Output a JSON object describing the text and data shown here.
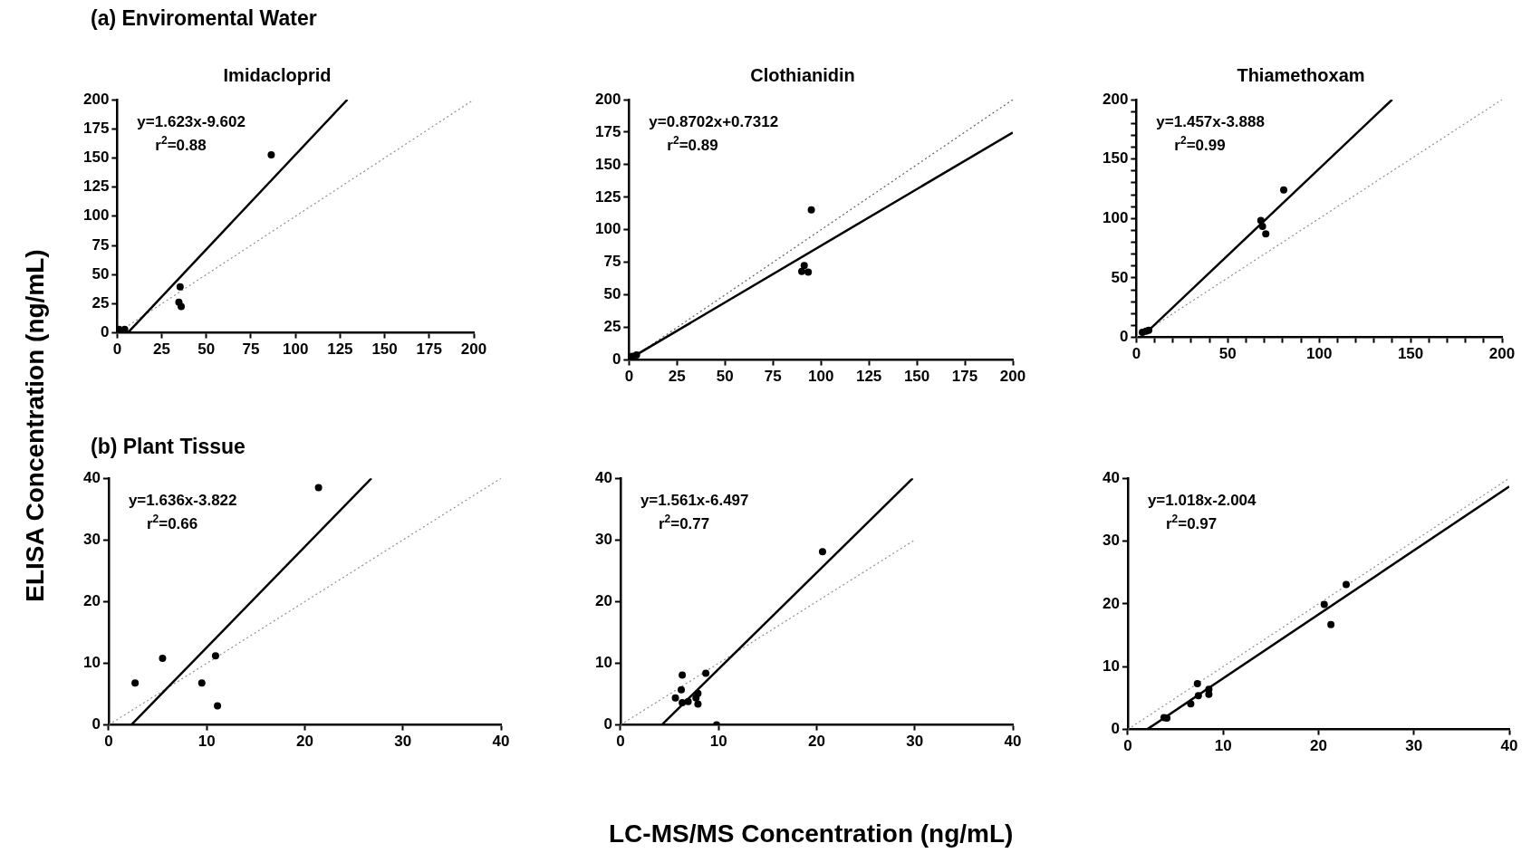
{
  "chart_data": [
    {
      "type": "scatter",
      "subtitle": "(a) Enviromental Water",
      "title": "Imidacloprid",
      "ylabel": "ELISA Concentration (ng/mL)",
      "annotations": [
        "y=1.623x-9.602",
        "r$^{2}$=0.88"
      ],
      "xlim": [
        0,
        200
      ],
      "ylim": [
        0,
        200
      ],
      "xticks": [
        0,
        25,
        50,
        75,
        100,
        125,
        150,
        175,
        200
      ],
      "yticks": [
        0,
        25,
        50,
        75,
        100,
        125,
        150,
        175,
        200
      ],
      "grid": false,
      "legend": false,
      "series": [
        {
          "type": "scatter",
          "color": "#000000",
          "marker": "circle",
          "x": [
            1,
            4.2,
            34.6,
            35.3,
            35.9,
            86.4
          ],
          "values": [
            3,
            3,
            26.2,
            39.5,
            22.5,
            152.6
          ]
        },
        {
          "type": "line",
          "color": "#000000",
          "marker": "none",
          "line_style": "solid",
          "x": [
            5.9,
            129.1
          ],
          "values": [
            0,
            200
          ]
        },
        {
          "type": "line",
          "color": "#909090",
          "marker": "none",
          "line_style": "dotted",
          "x": [
            0,
            200
          ],
          "values": [
            0,
            200
          ]
        }
      ]
    },
    {
      "type": "scatter",
      "title": "Clothianidin",
      "annotations": [
        "y=0.8702x+0.7312",
        "r$^{2}$=0.89"
      ],
      "xlim": [
        0,
        200
      ],
      "ylim": [
        0,
        200
      ],
      "xticks": [
        0,
        25,
        50,
        75,
        100,
        125,
        150,
        175,
        200
      ],
      "yticks": [
        0,
        25,
        50,
        75,
        100,
        125,
        150,
        175,
        200
      ],
      "grid": false,
      "legend": false,
      "series": [
        {
          "type": "scatter",
          "color": "#000000",
          "marker": "circle",
          "x": [
            1.6,
            3.9,
            90.0,
            91.3,
            93.4,
            95.0
          ],
          "values": [
            2.9,
            3.9,
            68.0,
            72.6,
            67.6,
            115.3
          ]
        },
        {
          "type": "line",
          "color": "#000000",
          "marker": "none",
          "line_style": "solid",
          "x": [
            0,
            200
          ],
          "values": [
            0.7,
            174.8
          ]
        },
        {
          "type": "line",
          "color": "#606060",
          "marker": "none",
          "line_style": "dotted",
          "x": [
            0,
            200
          ],
          "values": [
            0,
            200
          ]
        }
      ]
    },
    {
      "type": "scatter",
      "title": "Thiamethoxam",
      "annotations": [
        "y=1.457x-3.888",
        "r$^{2}$=0.99"
      ],
      "xlim": [
        0,
        200
      ],
      "ylim": [
        0,
        200
      ],
      "xticks": [
        0,
        {
          "value": 10,
          "label": null
        },
        {
          "value": 20,
          "label": null
        },
        {
          "value": 30,
          "label": null
        },
        {
          "value": 40,
          "label": null
        },
        50,
        {
          "value": 60,
          "label": null
        },
        {
          "value": 70,
          "label": null
        },
        {
          "value": 80,
          "label": null
        },
        {
          "value": 90,
          "label": null
        },
        100,
        {
          "value": 110,
          "label": null
        },
        {
          "value": 120,
          "label": null
        },
        {
          "value": 130,
          "label": null
        },
        {
          "value": 140,
          "label": null
        },
        150,
        {
          "value": 160,
          "label": null
        },
        {
          "value": 170,
          "label": null
        },
        {
          "value": 180,
          "label": null
        },
        {
          "value": 190,
          "label": null
        },
        200
      ],
      "yticks": [
        0,
        {
          "value": 10,
          "label": null
        },
        {
          "value": 20,
          "label": null
        },
        {
          "value": 30,
          "label": null
        },
        {
          "value": 40,
          "label": null
        },
        50,
        {
          "value": 60,
          "label": null
        },
        {
          "value": 70,
          "label": null
        },
        {
          "value": 80,
          "label": null
        },
        {
          "value": 90,
          "label": null
        },
        100,
        {
          "value": 110,
          "label": null
        },
        {
          "value": 120,
          "label": null
        },
        {
          "value": 130,
          "label": null
        },
        {
          "value": 140,
          "label": null
        },
        150,
        {
          "value": 160,
          "label": null
        },
        {
          "value": 170,
          "label": null
        },
        {
          "value": 180,
          "label": null
        },
        {
          "value": 190,
          "label": null
        },
        200
      ],
      "grid": false,
      "legend": false,
      "series": [
        {
          "type": "scatter",
          "color": "#000000",
          "marker": "circle",
          "x": [
            3.3,
            5.3,
            6.8,
            68.1,
            69.0,
            70.8,
            80.6
          ],
          "values": [
            4.2,
            5.2,
            6.0,
            98.3,
            93.3,
            87.0,
            124.0
          ]
        },
        {
          "type": "line",
          "color": "#000000",
          "marker": "none",
          "line_style": "solid",
          "x": [
            5,
            139.9
          ],
          "values": [
            3.4,
            200
          ]
        },
        {
          "type": "line",
          "color": "#909090",
          "marker": "none",
          "line_style": "dotted",
          "x": [
            0,
            200
          ],
          "values": [
            0,
            200
          ]
        }
      ]
    },
    {
      "type": "scatter",
      "subtitle": "(b) Plant Tissue",
      "annotations": [
        "y=1.636x-3.822",
        "r$^{2}$=0.66"
      ],
      "xlim": [
        0,
        40
      ],
      "ylim": [
        0,
        40
      ],
      "xticks": [
        0,
        10,
        20,
        30,
        40
      ],
      "yticks": [
        0,
        10,
        20,
        30,
        40
      ],
      "grid": false,
      "legend": false,
      "series": [
        {
          "type": "scatter",
          "color": "#000000",
          "marker": "circle",
          "x": [
            2.7,
            5.5,
            9.5,
            10.9,
            11.1,
            21.4
          ],
          "values": [
            6.8,
            10.8,
            6.8,
            11.2,
            3.1,
            38.5
          ]
        },
        {
          "type": "line",
          "color": "#000000",
          "marker": "none",
          "line_style": "solid",
          "x": [
            2.3,
            26.8
          ],
          "values": [
            0,
            40
          ]
        },
        {
          "type": "line",
          "color": "#909090",
          "marker": "none",
          "line_style": "dotted",
          "x": [
            0,
            40
          ],
          "values": [
            0,
            40
          ]
        }
      ]
    },
    {
      "type": "scatter",
      "xlabel": "LC-MS/MS Concentration (ng/mL)",
      "annotations": [
        "y=1.561x-6.497",
        "r$^{2}$=0.77"
      ],
      "xlim": [
        0,
        40
      ],
      "ylim": [
        0,
        40
      ],
      "xticks": [
        0,
        10,
        20,
        30,
        40
      ],
      "yticks": [
        0,
        10,
        20,
        30,
        40
      ],
      "grid": false,
      "legend": false,
      "series": [
        {
          "type": "scatter",
          "color": "#000000",
          "marker": "circle",
          "x": [
            5.6,
            6.2,
            6.3,
            6.3,
            6.9,
            7.7,
            7.9,
            7.9,
            8.7,
            9.8,
            20.6
          ],
          "values": [
            4.4,
            5.7,
            8.1,
            3.6,
            3.8,
            4.4,
            5.1,
            3.4,
            8.4,
            0,
            28.1
          ]
        },
        {
          "type": "line",
          "color": "#000000",
          "marker": "none",
          "line_style": "solid",
          "x": [
            4.2,
            29.8
          ],
          "values": [
            0,
            40
          ]
        },
        {
          "type": "line",
          "color": "#909090",
          "marker": "none",
          "line_style": "dotted",
          "x": [
            0,
            30
          ],
          "values": [
            0,
            30
          ]
        }
      ]
    },
    {
      "type": "scatter",
      "annotations": [
        "y=1.018x-2.004",
        "r$^{2}$=0.97"
      ],
      "xlim": [
        0,
        40
      ],
      "ylim": [
        0,
        40
      ],
      "xticks": [
        0,
        10,
        20,
        30,
        40
      ],
      "yticks": [
        0,
        10,
        20,
        30,
        40
      ],
      "grid": false,
      "legend": false,
      "series": [
        {
          "type": "scatter",
          "color": "#000000",
          "marker": "circle",
          "x": [
            3.8,
            4.1,
            6.6,
            7.3,
            7.4,
            8.5,
            8.5,
            20.6,
            21.3,
            22.9
          ],
          "values": [
            1.9,
            1.8,
            4.1,
            7.3,
            5.4,
            5.6,
            6.4,
            19.9,
            16.7,
            23.1
          ]
        },
        {
          "type": "line",
          "color": "#000000",
          "marker": "none",
          "line_style": "solid",
          "x": [
            2.0,
            40
          ],
          "values": [
            0,
            38.7
          ]
        },
        {
          "type": "line",
          "color": "#909090",
          "marker": "none",
          "line_style": "dotted",
          "x": [
            0,
            40
          ],
          "values": [
            0,
            40
          ]
        }
      ]
    }
  ]
}
